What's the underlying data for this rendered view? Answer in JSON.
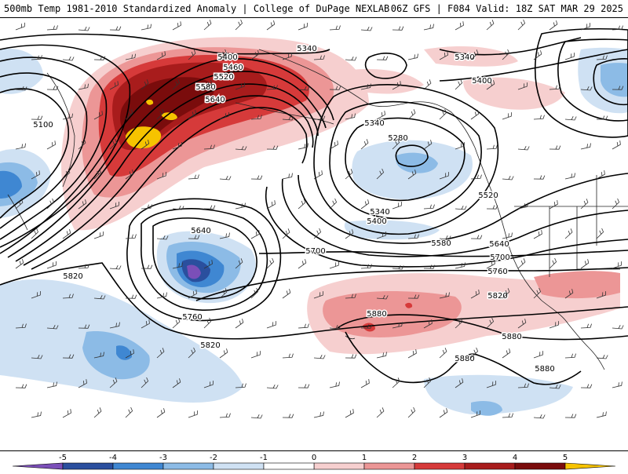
{
  "header": {
    "left": "500mb Temp 1981-2010 Standardized Anomaly | College of DuPage NEXLAB",
    "right": "06Z GFS | F084 Valid: 18Z SAT MAR 29 2025"
  },
  "colors": {
    "m5": "#7b4fb8",
    "m4": "#2a4f9e",
    "m3": "#3f87d2",
    "m2": "#8cbbe6",
    "m1": "#cfe1f3",
    "p1": "#f6cfcf",
    "p2": "#ec9696",
    "p3": "#d63a3a",
    "p4": "#a81c1c",
    "p5": "#7a0c0c",
    "p6": "#f6c300"
  },
  "contour_labels": [
    "5340",
    "5400",
    "5460",
    "5520",
    "5580",
    "5640",
    "5100",
    "5340",
    "5400",
    "5340",
    "5280",
    "5340",
    "5400",
    "5520",
    "5580",
    "5640",
    "5700",
    "5760",
    "5640",
    "5700",
    "5820",
    "5760",
    "5820",
    "5820",
    "5880",
    "5880",
    "5880",
    "5880"
  ],
  "colorbar": {
    "ticks": [
      "-5",
      "-4",
      "-3",
      "-2",
      "-1",
      "0",
      "1",
      "2",
      "3",
      "4",
      "5"
    ]
  }
}
